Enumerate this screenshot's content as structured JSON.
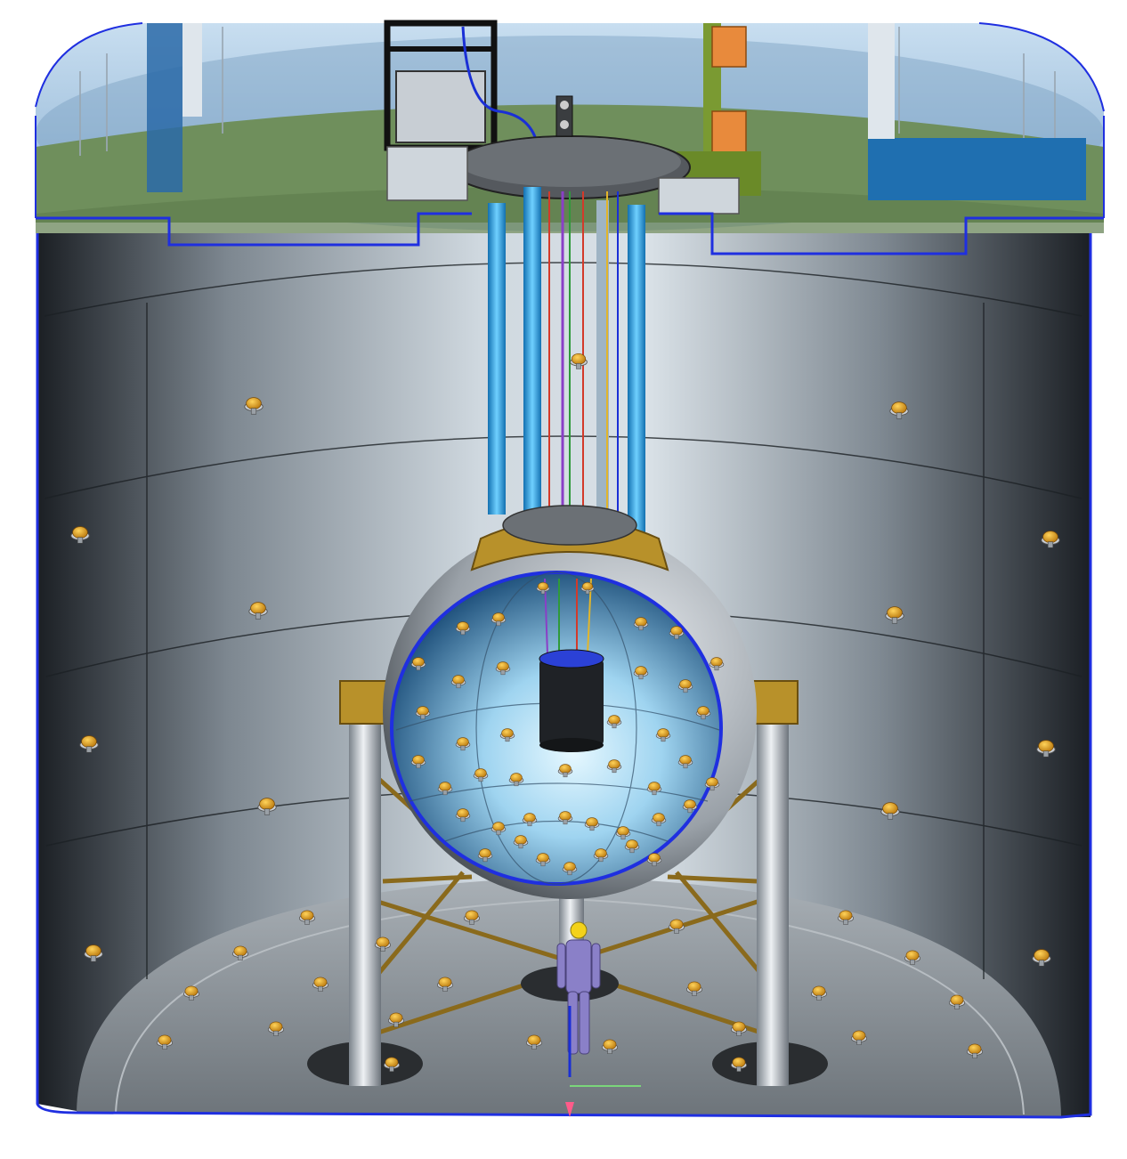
{
  "colors": {
    "background": "#ffffff",
    "sky": "#b9d2e6",
    "ground": "#6f8f5c",
    "tank_wall_light": "#c9d4dc",
    "tank_wall_dark": "#2a2f35",
    "tank_floor": "#8d949a",
    "outline_blue": "#1f2fe0",
    "sphere_inner_light": "#d8f2ff",
    "sphere_inner_dark": "#1e4f78",
    "sphere_shell": "#aeb3ba",
    "flange_gold": "#b8912a",
    "pmt_orange": "#e6a21c",
    "pipe_blue": "#2aa6e6",
    "leg_silver": "#c3c8cf",
    "cable_red": "#d33a2a",
    "cable_green": "#2f9a3a",
    "cable_yellow": "#e2b52a",
    "cable_purple": "#8a3fc7",
    "person_purple": "#8a80c8",
    "helmet_yellow": "#f3d21a",
    "orange_block": "#e88a3c",
    "green_frame": "#7a9a32",
    "blue_panel": "#1f6fb0",
    "inner_vessel_dark": "#1f2226"
  },
  "icons": {
    "pmt": "photomultiplier-icon",
    "person": "person-figure-icon"
  }
}
